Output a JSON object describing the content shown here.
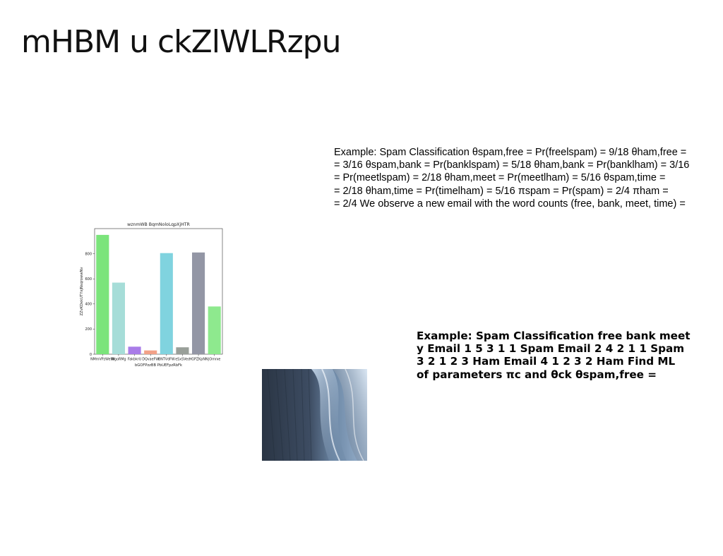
{
  "slide": {
    "title": "mHBM u ckZlWLRzpu"
  },
  "text_block_1": {
    "lines": [
      "Example: Spam Classification θspam,free = Pr(freelspam) = 9/18 θham,free =",
      "= 3/16 θspam,bank = Pr(banklspam) = 5/18 θham,bank = Pr(banklham) = 3/16",
      "= Pr(meetlspam) = 2/18 θham,meet = Pr(meetlham) = 5/16 θspam,time =",
      "= 2/18 θham,time = Pr(timelham) = 5/16 πspam = Pr(spam) = 2/4 πham =",
      "= 2/4 We observe a new email with the word counts (free, bank, meet, time) ="
    ]
  },
  "text_block_2": {
    "lines": [
      "Example: Spam Classification free bank meet",
      "y Email 1 5 3 1 1 Spam Email 2 4 2 1 1 Spam",
      "3 2 1 2 3 Ham Email 4 1 2 3 2 Ham Find ML",
      "of parameters πc and θck θspam,free ="
    ]
  },
  "chart_data": {
    "type": "bar",
    "title": "wznmWB BqmNoloLqpXjHTR",
    "xlabel": "bGOFPzzBB PbUEFpzRbFk",
    "ylabel": "ZZvKDxkUTYxjNsqrowwNv",
    "categories": [
      "NMmVPzWeWi",
      "WgoRMg",
      "FakbkrU",
      "DQvaeFW",
      "BNTVdFW",
      "eSxSVec",
      "HGPZKpNN",
      "JOmrxe"
    ],
    "values": [
      950,
      570,
      60,
      30,
      805,
      55,
      810,
      380
    ],
    "colors": [
      "#7be47b",
      "#a6ddd8",
      "#a97ce8",
      "#f2a188",
      "#80d3df",
      "#999f99",
      "#9396a5",
      "#8ee98e"
    ],
    "yticks": [
      0,
      200,
      400,
      600,
      800
    ],
    "ylim": [
      0,
      1000
    ],
    "grid": false
  }
}
